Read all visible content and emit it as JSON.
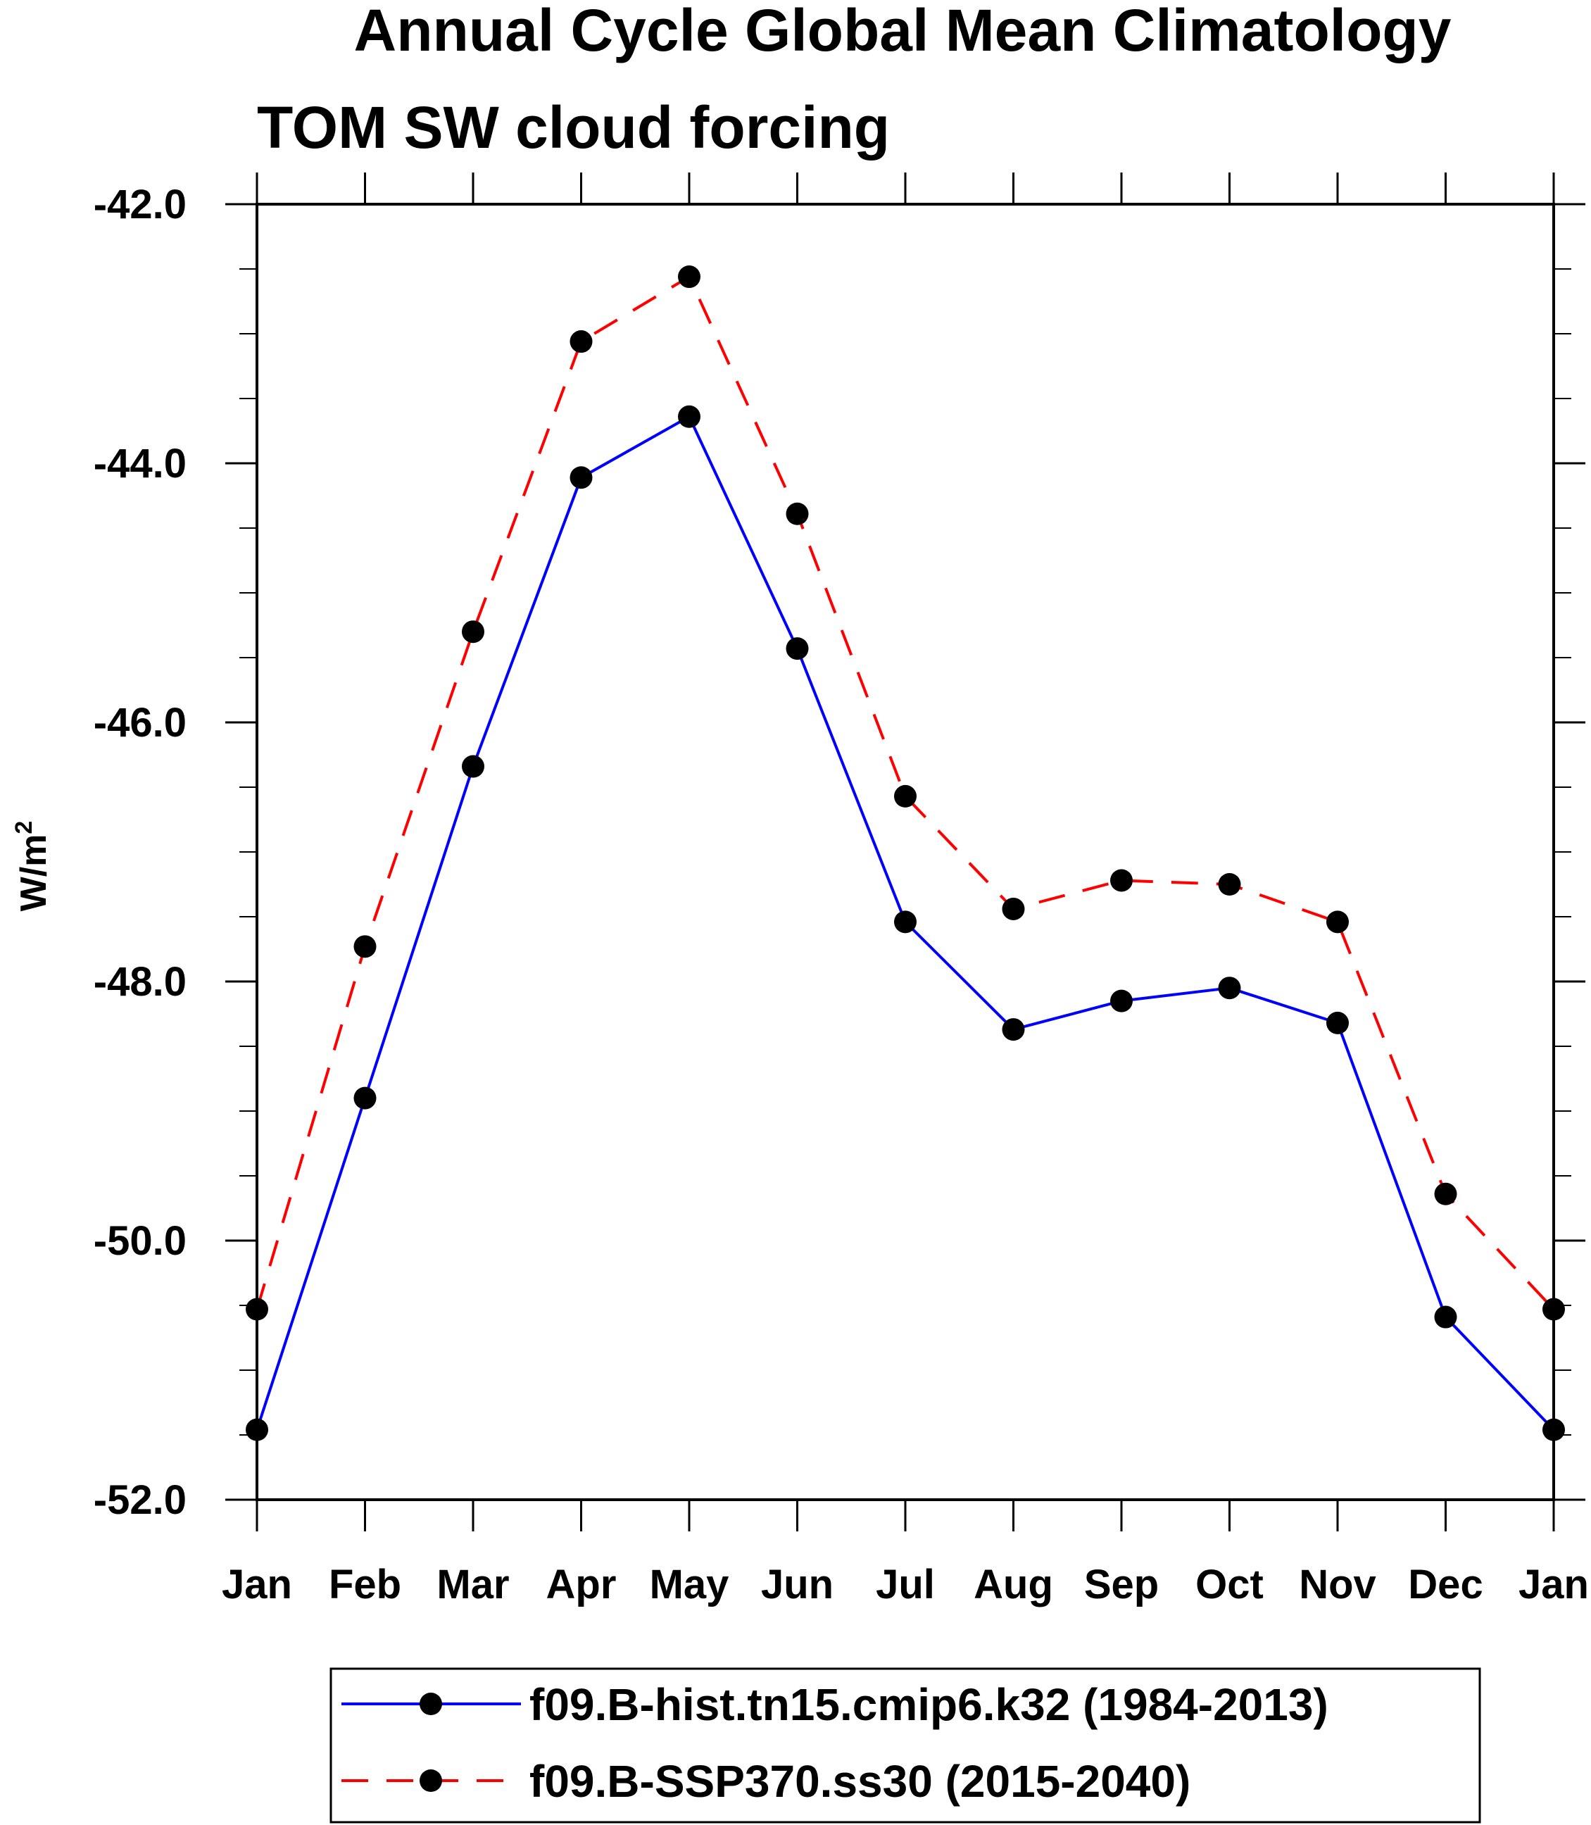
{
  "chart_data": {
    "type": "line",
    "title": "Annual Cycle Global Mean Climatology",
    "subtitle": "TOM SW cloud forcing",
    "xlabel": "",
    "ylabel": "W/m",
    "ylabel_superscript": "2",
    "categories": [
      "Jan",
      "Feb",
      "Mar",
      "Apr",
      "May",
      "Jun",
      "Jul",
      "Aug",
      "Sep",
      "Oct",
      "Nov",
      "Dec",
      "Jan"
    ],
    "ylim": [
      -52.0,
      -42.0
    ],
    "yticks": [
      -42.0,
      -44.0,
      -46.0,
      -48.0,
      -50.0,
      -52.0
    ],
    "ytick_labels": [
      "-42.0",
      "-44.0",
      "-46.0",
      "-48.0",
      "-50.0",
      "-52.0"
    ],
    "yminor_step": 0.5,
    "grid": false,
    "legend_position": "bottom",
    "series": [
      {
        "name": "f09.B-hist.tn15.cmip6.k32 (1984-2013)",
        "color": "#0000ff",
        "dash": "solid",
        "marker": "filled-circle",
        "values": [
          -51.46,
          -48.9,
          -46.34,
          -44.11,
          -43.64,
          -45.43,
          -47.54,
          -48.37,
          -48.15,
          -48.05,
          -48.32,
          -50.59,
          -51.46
        ]
      },
      {
        "name": "f09.B-SSP370.ss30 (2015-2040)",
        "color": "#ff0000",
        "dash": "dashed",
        "marker": "filled-circle",
        "values": [
          -50.53,
          -47.73,
          -45.3,
          -43.06,
          -42.56,
          -44.39,
          -46.57,
          -47.44,
          -47.22,
          -47.25,
          -47.54,
          -49.64,
          -50.53
        ]
      }
    ]
  }
}
